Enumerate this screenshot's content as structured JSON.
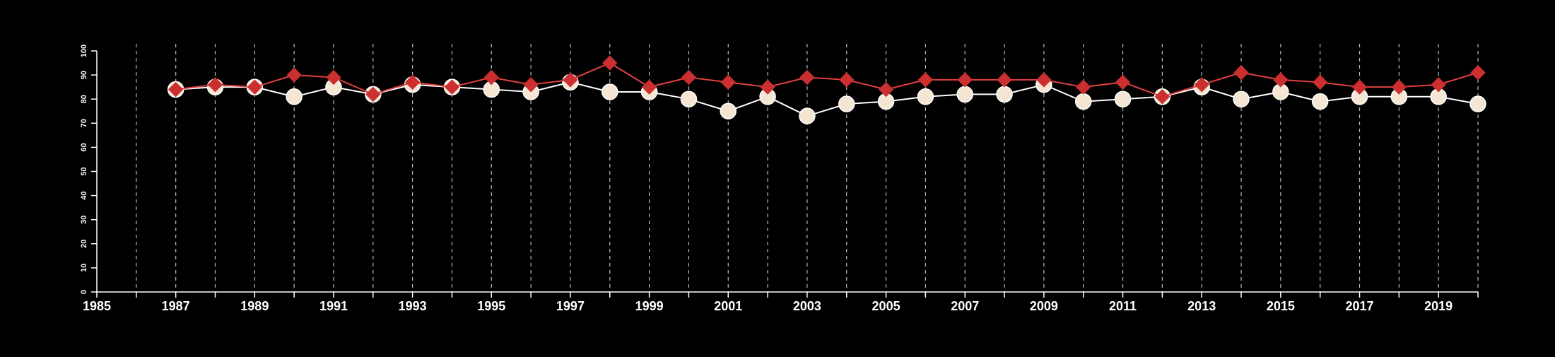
{
  "colors": {
    "background": "#000000",
    "axis": "#ffffff",
    "grid": "#bbbbbb",
    "series_a_line": "#ffffff",
    "series_a_fill": "#f5e6d3",
    "series_b_line": "#e04040",
    "series_b_fill": "#cc2f2f"
  },
  "chart_data": {
    "type": "line",
    "title": "",
    "xlabel": "",
    "ylabel": "",
    "xlim": [
      1985,
      2020
    ],
    "ylim": [
      0,
      100
    ],
    "x_ticks": [
      "1985",
      "1987",
      "1989",
      "1991",
      "1993",
      "1995",
      "1997",
      "1999",
      "2001",
      "2003",
      "2005",
      "2007",
      "2009",
      "2011",
      "2013",
      "2015",
      "2017",
      "2019"
    ],
    "y_ticks": [
      "0",
      "10",
      "20",
      "30",
      "40",
      "50",
      "60",
      "70",
      "80",
      "90",
      "100"
    ],
    "grid": "vertical dashed lines at every year",
    "legend": "none",
    "x": [
      1987,
      1988,
      1989,
      1990,
      1991,
      1992,
      1993,
      1994,
      1995,
      1996,
      1997,
      1998,
      1999,
      2000,
      2001,
      2002,
      2003,
      2004,
      2005,
      2006,
      2007,
      2008,
      2009,
      2010,
      2011,
      2012,
      2013,
      2014,
      2015,
      2016,
      2017,
      2018,
      2019,
      2020
    ],
    "series": [
      {
        "marker": "circle",
        "values": [
          84,
          85,
          85,
          81,
          85,
          82,
          86,
          85,
          84,
          83,
          87,
          83,
          83,
          80,
          75,
          81,
          73,
          78,
          79,
          81,
          82,
          82,
          86,
          79,
          80,
          81,
          85,
          80,
          83,
          79,
          81,
          81,
          81,
          78
        ]
      },
      {
        "marker": "diamond",
        "values": [
          84,
          86,
          85,
          90,
          89,
          82,
          87,
          85,
          89,
          86,
          88,
          95,
          85,
          89,
          87,
          85,
          89,
          88,
          84,
          88,
          88,
          88,
          88,
          85,
          87,
          81,
          86,
          91,
          88,
          87,
          85,
          85,
          86,
          91
        ]
      }
    ]
  }
}
